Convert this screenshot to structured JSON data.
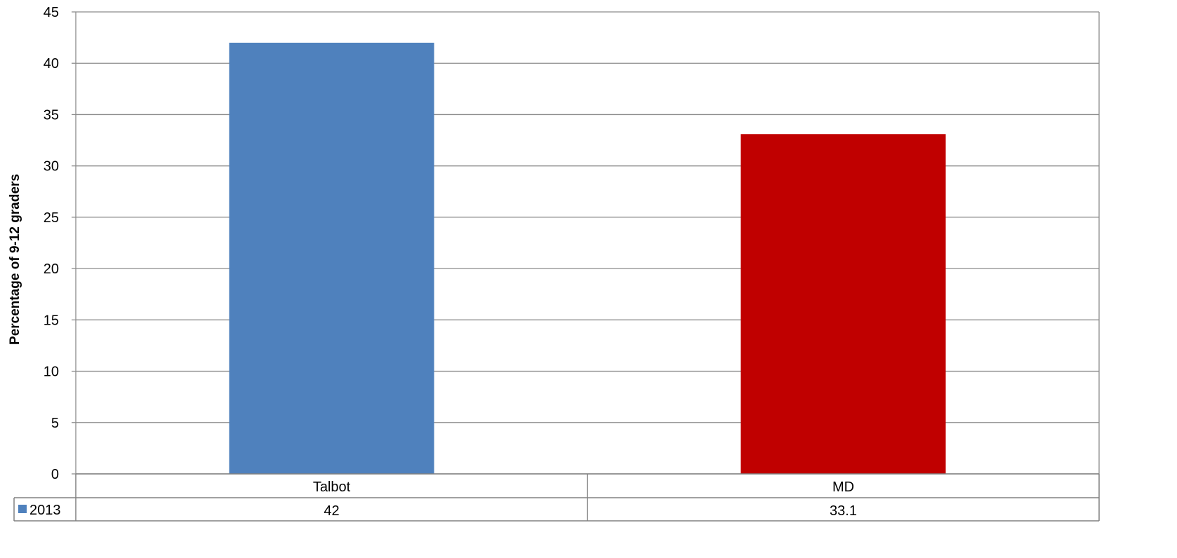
{
  "chart_data": {
    "type": "bar",
    "title": "",
    "xlabel": "",
    "ylabel": "Percentage of 9-12 graders",
    "categories": [
      "Talbot",
      "MD"
    ],
    "series": [
      {
        "name": "2013",
        "values": [
          42,
          33.1
        ]
      }
    ],
    "bar_colors": [
      "#4f81bd",
      "#c00000"
    ],
    "legend_color": "#4f81bd",
    "ylim": [
      0,
      45
    ],
    "yticks": [
      0,
      5,
      10,
      15,
      20,
      25,
      30,
      35,
      40,
      45
    ],
    "grid": true,
    "data_table": {
      "row_label": "2013",
      "cells": [
        "42",
        "33.1"
      ]
    }
  }
}
